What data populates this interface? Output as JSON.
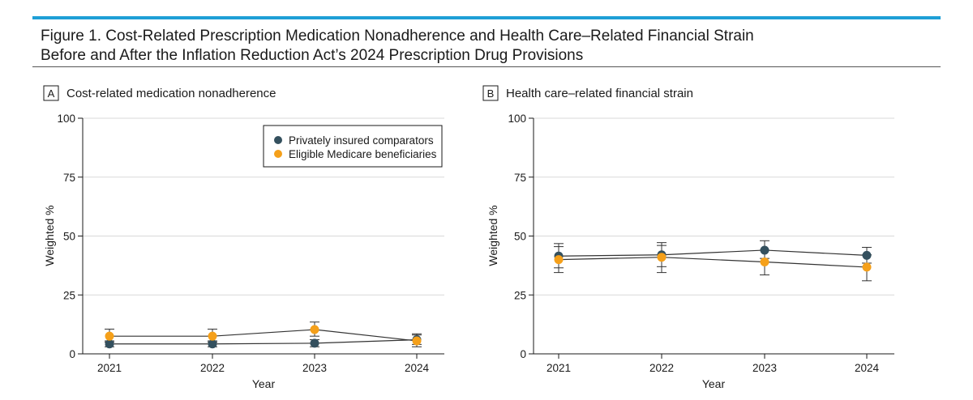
{
  "figure": {
    "title_line1": "Figure 1. Cost-Related Prescription Medication Nonadherence and Health Care–Related Financial Strain",
    "title_line2": "Before and After the Inflation Reduction Act’s 2024 Prescription Drug Provisions"
  },
  "colors": {
    "accent_rule": "#1e9fd6",
    "private": "#34505e",
    "medicare": "#f5a01a",
    "grid": "#d9d9d9",
    "line": "#333333"
  },
  "chart_data": [
    {
      "type": "line",
      "panel_letter": "A",
      "title": "Cost-related medication nonadherence",
      "xlabel": "Year",
      "ylabel": "Weighted %",
      "categories": [
        "2021",
        "2022",
        "2023",
        "2024"
      ],
      "yticks": [
        0,
        25,
        50,
        75,
        100
      ],
      "ylim": [
        0,
        100
      ],
      "grid": "horizontal",
      "legend": "top-right",
      "series": [
        {
          "name": "Privately insured comparators",
          "color": "#34505e",
          "values": [
            4.2,
            4.2,
            4.5,
            6.0
          ],
          "lower": [
            3.0,
            3.0,
            3.0,
            4.0
          ],
          "upper": [
            5.5,
            5.5,
            6.0,
            8.5
          ]
        },
        {
          "name": "Eligible Medicare beneficiaries",
          "color": "#f5a01a",
          "values": [
            7.5,
            7.5,
            10.3,
            5.5
          ],
          "lower": [
            5.0,
            5.0,
            7.5,
            3.0
          ],
          "upper": [
            10.5,
            10.5,
            13.5,
            8.0
          ]
        }
      ]
    },
    {
      "type": "line",
      "panel_letter": "B",
      "title": "Health care–related financial strain",
      "xlabel": "Year",
      "ylabel": "Weighted %",
      "categories": [
        "2021",
        "2022",
        "2023",
        "2024"
      ],
      "yticks": [
        0,
        25,
        50,
        75,
        100
      ],
      "ylim": [
        0,
        100
      ],
      "grid": "horizontal",
      "legend": "none",
      "series": [
        {
          "name": "Privately insured comparators",
          "color": "#34505e",
          "values": [
            41.5,
            42.0,
            44.0,
            41.8
          ],
          "lower": [
            36.5,
            37.0,
            40.5,
            38.5
          ],
          "upper": [
            46.8,
            47.2,
            48.0,
            45.2
          ]
        },
        {
          "name": "Eligible Medicare beneficiaries",
          "color": "#f5a01a",
          "values": [
            40.0,
            41.0,
            39.0,
            36.8
          ],
          "lower": [
            34.5,
            34.5,
            33.5,
            31.0
          ],
          "upper": [
            45.5,
            46.0,
            44.0,
            42.0
          ]
        }
      ]
    }
  ]
}
